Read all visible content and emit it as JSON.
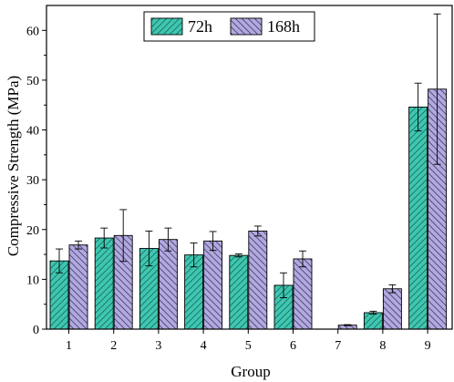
{
  "chart_data": {
    "type": "bar",
    "title": "",
    "xlabel": "Group",
    "ylabel": "Compressive Strength (MPa)",
    "categories": [
      "1",
      "2",
      "3",
      "4",
      "5",
      "6",
      "7",
      "8",
      "9"
    ],
    "ylim": [
      0,
      65
    ],
    "yticks": [
      "0",
      "10",
      "20",
      "30",
      "40",
      "50",
      "60"
    ],
    "grid": false,
    "legend_position": "top-center",
    "series": [
      {
        "name": "72h",
        "color": "#3ec7b1",
        "pattern": "hatch-forward",
        "values": [
          13.7,
          18.3,
          16.2,
          14.9,
          14.8,
          8.8,
          0,
          3.3,
          44.6
        ],
        "errors": [
          2.4,
          2.0,
          3.5,
          2.4,
          0.3,
          2.5,
          0,
          0.3,
          4.8
        ]
      },
      {
        "name": "168h",
        "color": "#b2a9e0",
        "pattern": "hatch-backward",
        "values": [
          16.9,
          18.8,
          18.0,
          17.7,
          19.7,
          14.1,
          0.8,
          8.1,
          48.2
        ],
        "errors": [
          0.8,
          5.2,
          2.3,
          1.9,
          1.0,
          1.6,
          0.1,
          0.8,
          15.1
        ]
      }
    ]
  }
}
